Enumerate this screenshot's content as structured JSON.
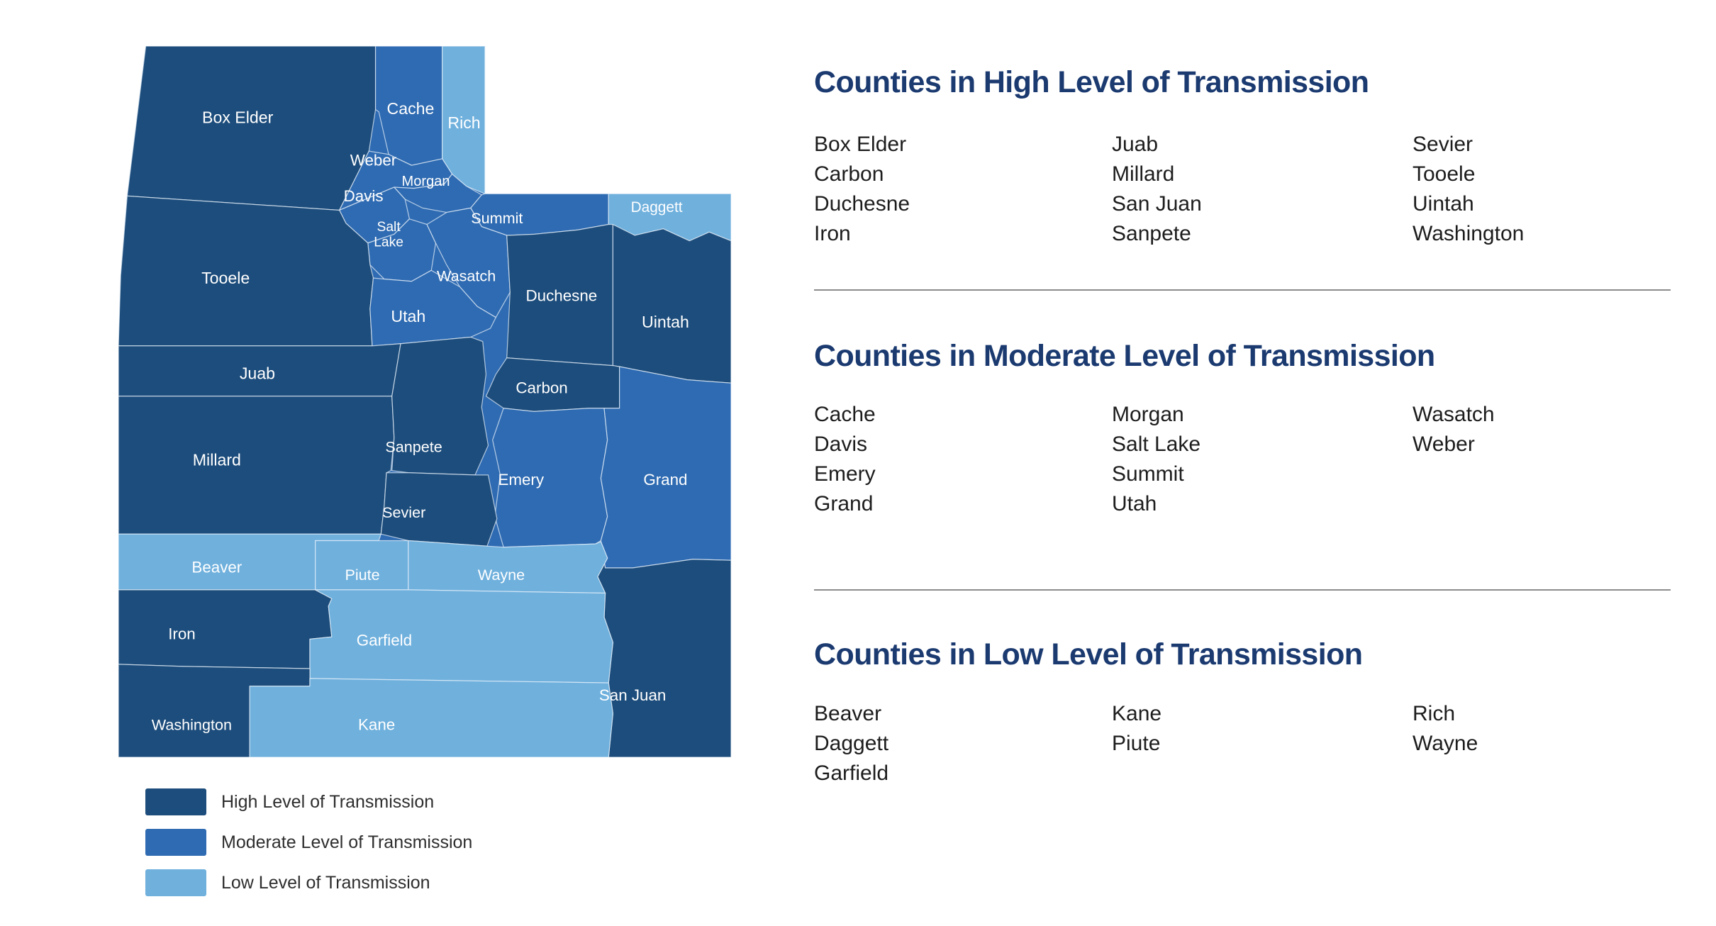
{
  "map": {
    "legend": [
      {
        "id": "high",
        "label": "High Level of Transmission",
        "color": "#1d4d7c"
      },
      {
        "id": "moderate",
        "label": "Moderate Level of Transmission",
        "color": "#2f6bb2"
      },
      {
        "id": "low",
        "label": "Low Level of Transmission",
        "color": "#6fb0dd"
      }
    ],
    "counties": [
      {
        "name": "Box Elder",
        "level": "high"
      },
      {
        "name": "Cache",
        "level": "moderate"
      },
      {
        "name": "Rich",
        "level": "low"
      },
      {
        "name": "Weber",
        "level": "moderate"
      },
      {
        "name": "Morgan",
        "level": "moderate"
      },
      {
        "name": "Davis",
        "level": "moderate"
      },
      {
        "name": "Summit",
        "level": "moderate"
      },
      {
        "name": "Daggett",
        "level": "low"
      },
      {
        "name": "Salt Lake",
        "level": "moderate"
      },
      {
        "name": "Tooele",
        "level": "high"
      },
      {
        "name": "Wasatch",
        "level": "moderate"
      },
      {
        "name": "Utah",
        "level": "moderate"
      },
      {
        "name": "Duchesne",
        "level": "high"
      },
      {
        "name": "Uintah",
        "level": "high"
      },
      {
        "name": "Juab",
        "level": "high"
      },
      {
        "name": "Millard",
        "level": "high"
      },
      {
        "name": "Sanpete",
        "level": "high"
      },
      {
        "name": "Carbon",
        "level": "high"
      },
      {
        "name": "Emery",
        "level": "moderate"
      },
      {
        "name": "Grand",
        "level": "moderate"
      },
      {
        "name": "Sevier",
        "level": "high"
      },
      {
        "name": "San Juan",
        "level": "high"
      },
      {
        "name": "Beaver",
        "level": "low"
      },
      {
        "name": "Piute",
        "level": "low"
      },
      {
        "name": "Wayne",
        "level": "low"
      },
      {
        "name": "Iron",
        "level": "high"
      },
      {
        "name": "Garfield",
        "level": "low"
      },
      {
        "name": "Washington",
        "level": "high"
      },
      {
        "name": "Kane",
        "level": "low"
      }
    ]
  },
  "sections": [
    {
      "title": "Counties in High Level of Transmission",
      "columns": [
        [
          "Box Elder",
          "Carbon",
          "Duchesne",
          "Iron"
        ],
        [
          "Juab",
          "Millard",
          "San Juan",
          "Sanpete"
        ],
        [
          "Sevier",
          "Tooele",
          "Uintah",
          "Washington"
        ]
      ]
    },
    {
      "title": "Counties in Moderate Level of Transmission",
      "columns": [
        [
          "Cache",
          "Davis",
          "Emery",
          "Grand"
        ],
        [
          "Morgan",
          "Salt Lake",
          "Summit",
          "Utah"
        ],
        [
          "Wasatch",
          "Weber"
        ]
      ]
    },
    {
      "title": "Counties in Low Level of Transmission",
      "columns": [
        [
          "Beaver",
          "Daggett",
          "Garfield"
        ],
        [
          "Kane",
          "Piute"
        ],
        [
          "Rich",
          "Wayne"
        ]
      ]
    }
  ],
  "colors": {
    "section_title": "#1b3a70",
    "body_text": "#1d1d1d",
    "divider": "#8c8c8c",
    "map_label": "#ffffff",
    "background": "#ffffff"
  }
}
